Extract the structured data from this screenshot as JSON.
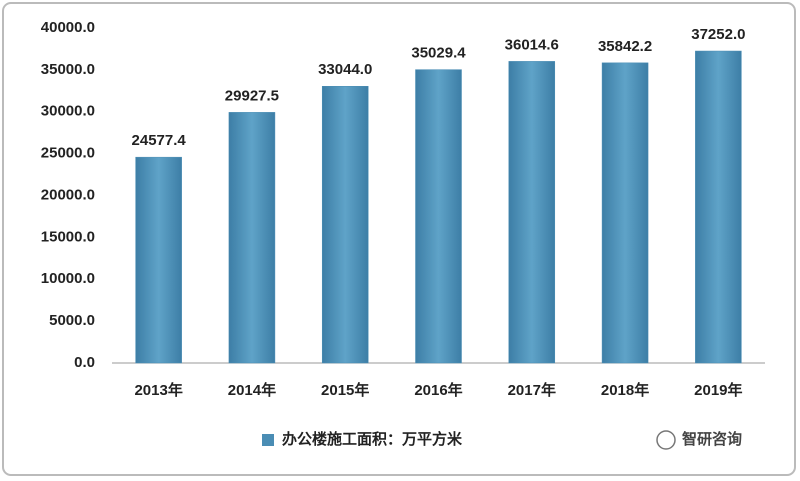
{
  "chart_data": {
    "type": "bar",
    "categories": [
      "2013年",
      "2014年",
      "2015年",
      "2016年",
      "2017年",
      "2018年",
      "2019年"
    ],
    "series": [
      {
        "name": "办公楼施工面积：万平方米",
        "color": "#4a8db4",
        "values": [
          24577.4,
          29927.5,
          33044.0,
          35029.4,
          36014.6,
          35842.2,
          37252.0
        ],
        "value_labels": [
          "24577.4",
          "29927.5",
          "33044.0",
          "35029.4",
          "36014.6",
          "35842.2",
          "37252.0"
        ]
      }
    ],
    "ylim": [
      0,
      40000
    ],
    "yticks": [
      {
        "value": 0,
        "label": "0.0"
      },
      {
        "value": 5000,
        "label": "5000.0"
      },
      {
        "value": 10000,
        "label": "10000.0"
      },
      {
        "value": 15000,
        "label": "15000.0"
      },
      {
        "value": 20000,
        "label": "20000.0"
      },
      {
        "value": 25000,
        "label": "25000.0"
      },
      {
        "value": 30000,
        "label": "30000.0"
      },
      {
        "value": 35000,
        "label": "35000.0"
      },
      {
        "value": 40000,
        "label": "40000.0"
      }
    ],
    "grid": false,
    "legend": "bottom",
    "watermark": "智研咨询"
  }
}
